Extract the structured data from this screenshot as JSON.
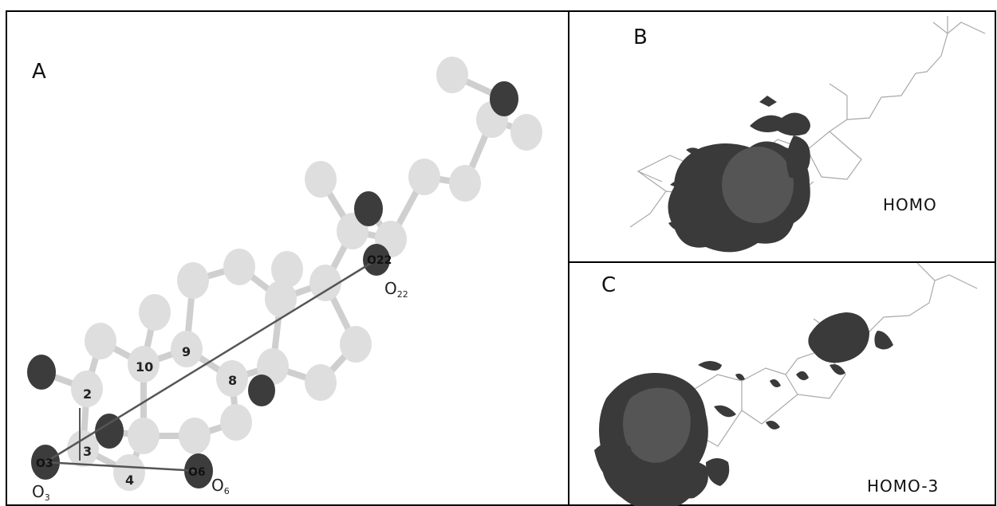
{
  "panels": {
    "A": {
      "letter": "A"
    },
    "B": {
      "letter": "B",
      "orbital": "HOMO"
    },
    "C": {
      "letter": "C",
      "orbital": "HOMO-3"
    }
  },
  "atom_numbers": [
    "2",
    "3",
    "4",
    "8",
    "9",
    "10"
  ],
  "oxygen_labels": [
    "O3",
    "O6",
    "O22"
  ],
  "captions": {
    "o3": {
      "main": "O",
      "sub": "3"
    },
    "o6": {
      "main": "O",
      "sub": "6"
    },
    "o22": {
      "main": "O",
      "sub": "22"
    }
  },
  "colors": {
    "light_atom": "#dedede",
    "dark_atom": "#3c3c3c",
    "border": "#000000"
  }
}
